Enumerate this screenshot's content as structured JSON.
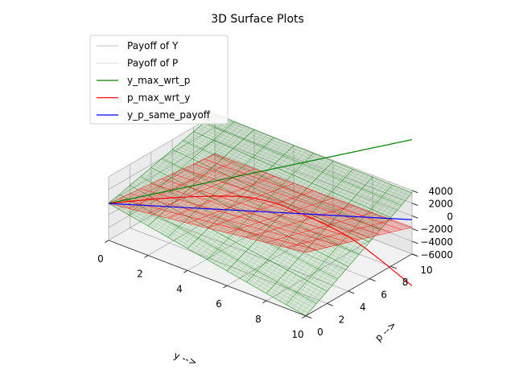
{
  "chart_data": {
    "type": "surface3d",
    "title": "3D Surface Plots",
    "xlabel": "y -->",
    "ylabel": "p -->",
    "zlabel": "",
    "x_ticks": [
      "0",
      "2",
      "4",
      "6",
      "8",
      "10"
    ],
    "y_ticks": [
      "0",
      "2",
      "4",
      "6",
      "8",
      "10"
    ],
    "z_ticks": [
      "4000",
      "2000",
      "0",
      "−2000",
      "−4000",
      "−6000"
    ],
    "xlim": [
      0,
      10
    ],
    "ylim": [
      0,
      10
    ],
    "zlim": [
      -6000,
      4000
    ],
    "grid": true,
    "legend_position": "upper-left",
    "legend": [
      {
        "label": "Payoff of Y",
        "color": "#cfcfcf"
      },
      {
        "label": "Payoff of P",
        "color": "#e3e3e3"
      },
      {
        "label": "y_max_wrt_p",
        "color": "#008000"
      },
      {
        "label": "p_max_wrt_y",
        "color": "#ff0000"
      },
      {
        "label": "y_p_same_payoff",
        "color": "#0000ff"
      }
    ],
    "surfaces": [
      {
        "name": "Payoff of Y",
        "color": "#008000",
        "corners": {
          "y0p0": -200,
          "y10p0": -6000,
          "y0p10": 4200,
          "y10p10": 3600
        }
      },
      {
        "name": "Payoff of P",
        "color": "#ff0000",
        "corners": {
          "y0p0": -200,
          "y10p0": 4000,
          "y0p10": -2200,
          "y10p10": -1800
        }
      }
    ],
    "curves": [
      {
        "name": "y_max_wrt_p",
        "color": "#008000",
        "points": [
          [
            0,
            0,
            -200
          ],
          [
            10,
            10,
            12000
          ]
        ]
      },
      {
        "name": "p_max_wrt_y",
        "color": "#ff0000",
        "points": [
          [
            0,
            0,
            -200
          ],
          [
            2,
            2,
            1100
          ],
          [
            4,
            4,
            1800
          ],
          [
            5,
            5,
            1500
          ],
          [
            6,
            6,
            200
          ],
          [
            8,
            8,
            -4000
          ],
          [
            10,
            10,
            -11000
          ]
        ]
      },
      {
        "name": "y_p_same_payoff",
        "color": "#0000ff",
        "points": [
          [
            0,
            0,
            -200
          ],
          [
            10,
            10,
            -600
          ]
        ]
      }
    ]
  }
}
